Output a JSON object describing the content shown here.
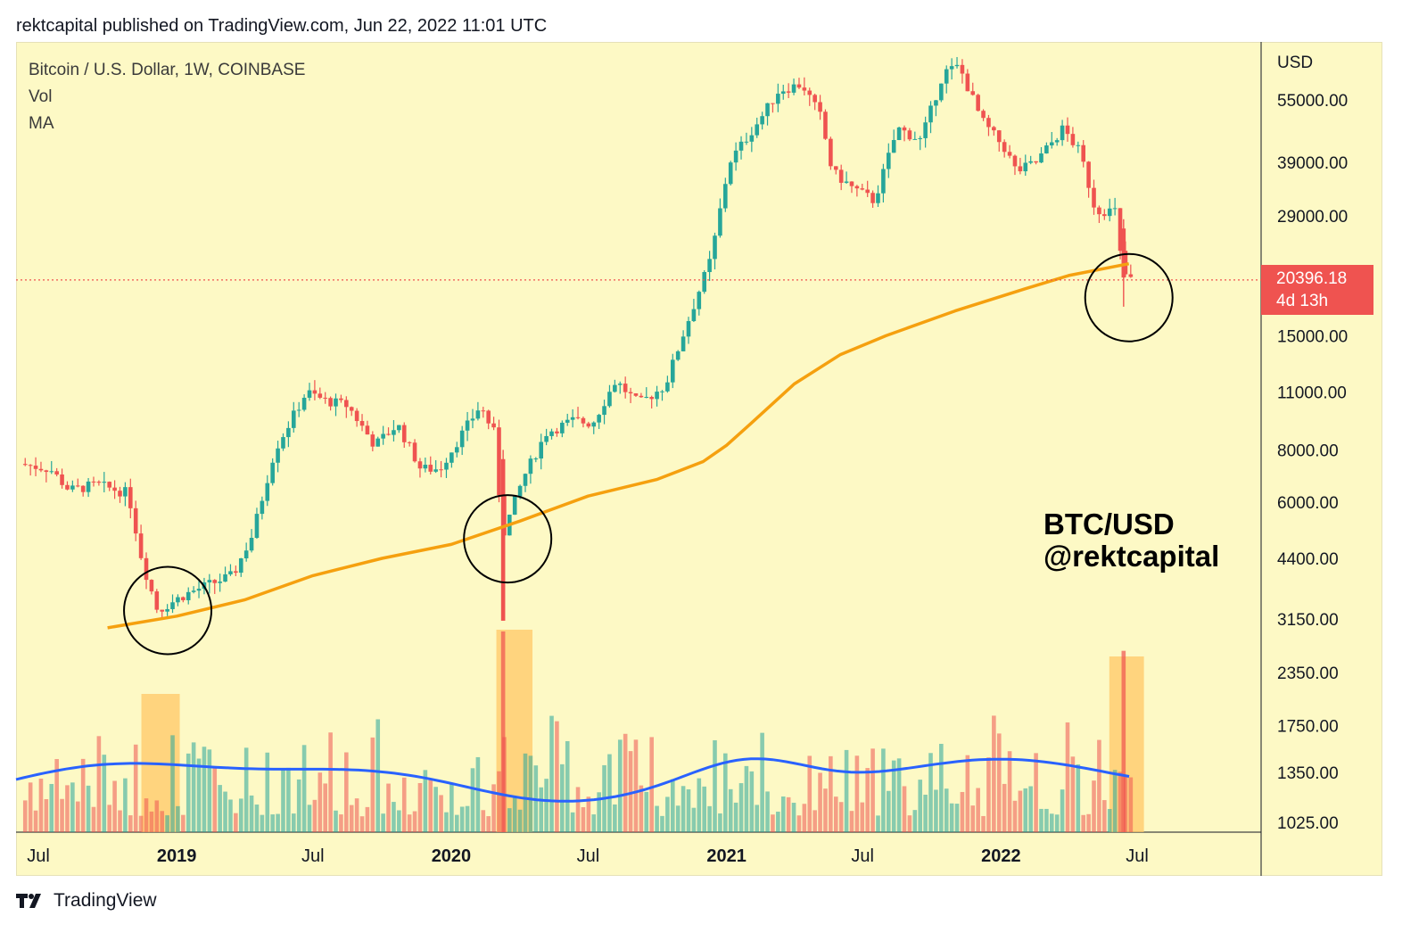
{
  "header": {
    "published": "rektcapital published on TradingView.com, Jun 22, 2022 11:01 UTC"
  },
  "legend": {
    "symbol": "Bitcoin / U.S. Dollar, 1W, COINBASE",
    "vol": "Vol",
    "ma": "MA"
  },
  "axis": {
    "currency": "USD"
  },
  "price_tag": {
    "price": "20396.18",
    "countdown": "4d 13h"
  },
  "watermark": {
    "line1": "BTC/USD",
    "line2": "@rektcapital"
  },
  "footer": {
    "brand": "TradingView"
  },
  "colors": {
    "up": "#26a69a",
    "down": "#ef5350",
    "ma": "#f5a00f",
    "vol_ma": "#2962ff",
    "background": "#fdf9c5",
    "highlight": "#ffc766"
  },
  "chart_data": {
    "type": "candlestick",
    "symbol": "Bitcoin / U.S. Dollar, 1W, COINBASE",
    "y_scale": "log",
    "y_ticks": [
      "55000.00",
      "39000.00",
      "29000.00",
      "15000.00",
      "11000.00",
      "8000.00",
      "6000.00",
      "4400.00",
      "3150.00",
      "2350.00",
      "1750.00",
      "1350.00",
      "1025.00"
    ],
    "x_ticks": [
      {
        "label": "Jul",
        "date": "2018-07-01",
        "bold": false
      },
      {
        "label": "2019",
        "date": "2019-01-01",
        "bold": true
      },
      {
        "label": "Jul",
        "date": "2019-07-01",
        "bold": false
      },
      {
        "label": "2020",
        "date": "2020-01-01",
        "bold": true
      },
      {
        "label": "Jul",
        "date": "2020-07-01",
        "bold": false
      },
      {
        "label": "2021",
        "date": "2021-01-01",
        "bold": true
      },
      {
        "label": "Jul",
        "date": "2021-07-01",
        "bold": false
      },
      {
        "label": "2022",
        "date": "2022-01-01",
        "bold": true
      },
      {
        "label": "Jul",
        "date": "2022-07-01",
        "bold": false
      }
    ],
    "price_path": [
      [
        "2018-06-10",
        7400
      ],
      [
        "2018-07-20",
        7200
      ],
      [
        "2018-08-15",
        6400
      ],
      [
        "2018-09-20",
        6600
      ],
      [
        "2018-11-01",
        6300
      ],
      [
        "2018-11-20",
        4300
      ],
      [
        "2018-12-10",
        3300
      ],
      [
        "2019-01-15",
        3600
      ],
      [
        "2019-02-15",
        3800
      ],
      [
        "2019-03-20",
        4000
      ],
      [
        "2019-04-15",
        5000
      ],
      [
        "2019-05-15",
        8000
      ],
      [
        "2019-06-26",
        11000
      ],
      [
        "2019-07-20",
        10500
      ],
      [
        "2019-08-20",
        10200
      ],
      [
        "2019-09-25",
        8200
      ],
      [
        "2019-10-25",
        9200
      ],
      [
        "2019-11-25",
        7200
      ],
      [
        "2019-12-20",
        7200
      ],
      [
        "2020-01-20",
        8800
      ],
      [
        "2020-02-12",
        10200
      ],
      [
        "2020-03-01",
        8800
      ],
      [
        "2020-03-13",
        5000
      ],
      [
        "2020-04-10",
        6900
      ],
      [
        "2020-05-10",
        8800
      ],
      [
        "2020-06-15",
        9400
      ],
      [
        "2020-07-10",
        9250
      ],
      [
        "2020-08-10",
        11700
      ],
      [
        "2020-09-10",
        10300
      ],
      [
        "2020-10-15",
        11400
      ],
      [
        "2020-11-10",
        15500
      ],
      [
        "2020-12-15",
        23000
      ],
      [
        "2021-01-08",
        39000
      ],
      [
        "2021-02-20",
        50000
      ],
      [
        "2021-03-15",
        58000
      ],
      [
        "2021-04-15",
        60000
      ],
      [
        "2021-05-10",
        50000
      ],
      [
        "2021-05-25",
        37000
      ],
      [
        "2021-06-20",
        34000
      ],
      [
        "2021-07-20",
        31500
      ],
      [
        "2021-08-20",
        47000
      ],
      [
        "2021-09-20",
        44000
      ],
      [
        "2021-10-20",
        64000
      ],
      [
        "2021-11-10",
        66000
      ],
      [
        "2021-12-10",
        49000
      ],
      [
        "2022-01-10",
        42000
      ],
      [
        "2022-01-25",
        37000
      ],
      [
        "2022-02-20",
        39000
      ],
      [
        "2022-03-28",
        47000
      ],
      [
        "2022-04-20",
        41000
      ],
      [
        "2022-05-10",
        30000
      ],
      [
        "2022-06-05",
        29800
      ],
      [
        "2022-06-14",
        22000
      ],
      [
        "2022-06-22",
        20396
      ]
    ],
    "ma_path": [
      [
        "2018-10-01",
        3000
      ],
      [
        "2019-01-01",
        3200
      ],
      [
        "2019-04-01",
        3500
      ],
      [
        "2019-07-01",
        4000
      ],
      [
        "2019-10-01",
        4400
      ],
      [
        "2020-01-01",
        4750
      ],
      [
        "2020-04-01",
        5400
      ],
      [
        "2020-07-01",
        6200
      ],
      [
        "2020-10-01",
        6800
      ],
      [
        "2020-12-01",
        7500
      ],
      [
        "2021-01-01",
        8200
      ],
      [
        "2021-02-01",
        9200
      ],
      [
        "2021-04-01",
        11500
      ],
      [
        "2021-06-01",
        13500
      ],
      [
        "2021-08-01",
        15000
      ],
      [
        "2021-11-01",
        17200
      ],
      [
        "2022-02-01",
        19400
      ],
      [
        "2022-04-01",
        20900
      ],
      [
        "2022-06-20",
        22300
      ]
    ],
    "last_price": 20396.18,
    "annotations": [
      {
        "type": "circle",
        "date": "2018-12-20",
        "price": 3300
      },
      {
        "type": "circle",
        "date": "2020-03-16",
        "price": 4900
      },
      {
        "type": "circle",
        "date": "2022-06-20",
        "price": 18500
      }
    ],
    "volume_highlights": [
      {
        "from": "2018-11-15",
        "to": "2019-01-05"
      },
      {
        "from": "2020-03-01",
        "to": "2020-04-18"
      },
      {
        "from": "2022-05-25",
        "to": "2022-07-10"
      }
    ]
  }
}
